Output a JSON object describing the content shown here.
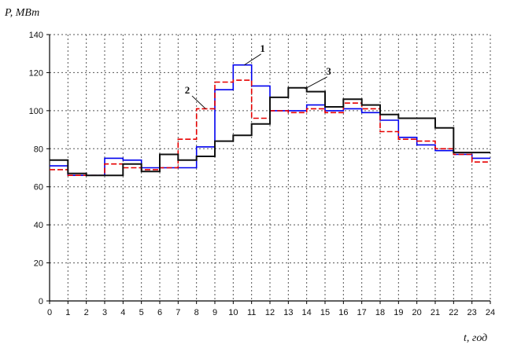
{
  "chart_data": {
    "type": "line",
    "step": true,
    "title": "",
    "xlabel": "t, год",
    "ylabel": "P, МВт",
    "xlim": [
      0,
      24
    ],
    "ylim": [
      0,
      140
    ],
    "x_ticks": [
      0,
      1,
      2,
      3,
      4,
      5,
      6,
      7,
      8,
      9,
      10,
      11,
      12,
      13,
      14,
      15,
      16,
      17,
      18,
      19,
      20,
      21,
      22,
      23,
      24
    ],
    "y_ticks": [
      0,
      20,
      40,
      60,
      80,
      100,
      120,
      140
    ],
    "grid": true,
    "grid_style": "dotted",
    "legend": "none",
    "series": [
      {
        "name": "1",
        "color": "#0000ee",
        "style": "solid",
        "values": [
          71,
          66,
          66,
          75,
          74,
          70,
          70,
          70,
          81,
          111,
          124,
          113,
          100,
          100,
          103,
          100,
          101,
          99,
          95,
          86,
          82,
          79,
          77,
          75
        ]
      },
      {
        "name": "2",
        "color": "#e60000",
        "style": "dashed",
        "values": [
          69,
          66,
          66,
          72,
          70,
          69,
          70,
          85,
          101,
          115,
          116,
          96,
          100,
          99,
          101,
          99,
          104,
          101,
          89,
          85,
          84,
          80,
          77,
          73
        ]
      },
      {
        "name": "3",
        "color": "#111111",
        "style": "solid",
        "values": [
          74,
          67,
          66,
          66,
          72,
          68,
          77,
          74,
          76,
          84,
          87,
          93,
          107,
          112,
          110,
          102,
          106,
          103,
          98,
          96,
          96,
          91,
          78,
          78
        ]
      }
    ],
    "annotations": [
      {
        "text": "1",
        "x": 11.6,
        "y": 131,
        "target_x": 10.6,
        "target_y": 124
      },
      {
        "text": "2",
        "x": 7.5,
        "y": 109,
        "target_x": 8.5,
        "target_y": 101
      },
      {
        "text": "3",
        "x": 15.2,
        "y": 119,
        "target_x": 13.9,
        "target_y": 111.5
      }
    ]
  }
}
